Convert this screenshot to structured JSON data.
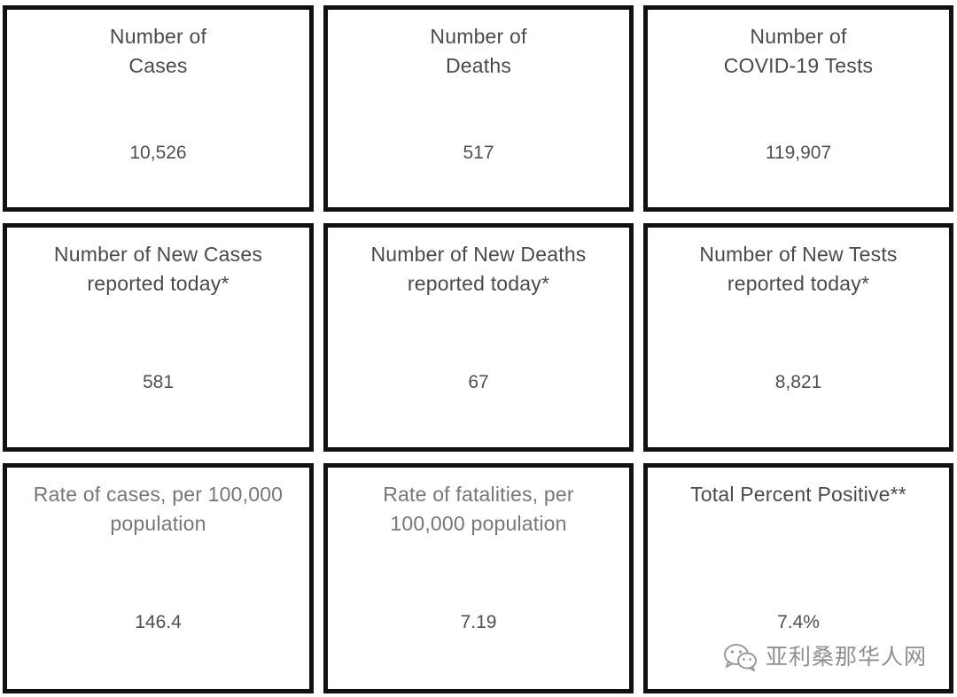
{
  "cards": [
    {
      "label_lines": [
        "Number of",
        "Cases"
      ],
      "value": "10,526"
    },
    {
      "label_lines": [
        "Number of",
        "Deaths"
      ],
      "value": "517"
    },
    {
      "label_lines": [
        "Number of",
        "COVID-19 Tests"
      ],
      "value": "119,907"
    },
    {
      "label_lines": [
        "Number of New Cases",
        "reported today*"
      ],
      "value": "581"
    },
    {
      "label_lines": [
        "Number of New Deaths",
        "reported today*"
      ],
      "value": "67"
    },
    {
      "label_lines": [
        "Number of New Tests",
        "reported today*"
      ],
      "value": "8,821"
    },
    {
      "label_lines": [
        "Rate of cases, per 100,000",
        "population"
      ],
      "value": "146.4"
    },
    {
      "label_lines": [
        "Rate of fatalities, per",
        "100,000 population"
      ],
      "value": "7.19"
    },
    {
      "label_lines": [
        "Total Percent Positive**"
      ],
      "value": "7.4%"
    }
  ],
  "watermark": {
    "text": "亚利桑那华人网",
    "icon": "wechat-icon"
  },
  "colors": {
    "border": "#111111",
    "label": "#4a4a4a",
    "label_muted": "#777777",
    "value": "#505050",
    "watermark": "#8f8f8f"
  }
}
